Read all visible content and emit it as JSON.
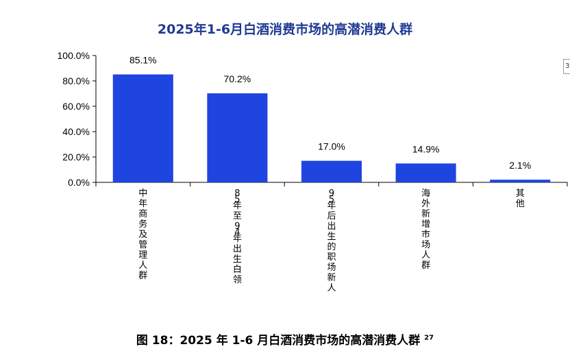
{
  "chart_data": {
    "type": "bar",
    "title": "2025年1-6月白酒消费市场的高潜消费人群",
    "categories": [
      "中年商务及管理人群",
      "85年至94年出生白领",
      "95年后出生的职场新人",
      "海外新增市场人群",
      "其他"
    ],
    "values": [
      85.1,
      70.2,
      17.0,
      14.9,
      2.1
    ],
    "value_labels": [
      "85.1%",
      "70.2%",
      "17.0%",
      "14.9%",
      "2.1%"
    ],
    "yticks": [
      "0.0%",
      "20.0%",
      "40.0%",
      "60.0%",
      "80.0%",
      "100.0%"
    ],
    "ylim": [
      0,
      100
    ],
    "xlabel": "",
    "ylabel": "",
    "grid": false,
    "bar_color": "#1f45e0"
  },
  "caption": {
    "text": "图 18：2025 年 1-6 月白酒消费市场的高潜消费人群",
    "footnote": "27"
  },
  "edge_mark": "3"
}
